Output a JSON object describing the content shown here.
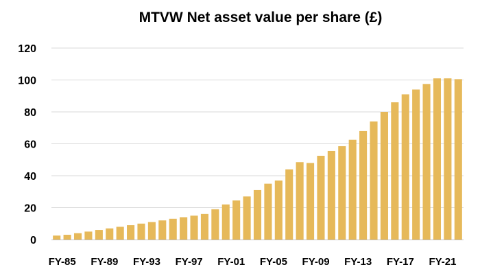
{
  "chart_data": {
    "type": "bar",
    "title": "MTVW Net asset value per share (£)",
    "xlabel": "",
    "ylabel": "",
    "ylim": [
      0,
      120
    ],
    "yticks": [
      0,
      20,
      40,
      60,
      80,
      100,
      120
    ],
    "grid": true,
    "bar_color": "#e6b95a",
    "categories": [
      "FY-85",
      "FY-86",
      "FY-87",
      "FY-88",
      "FY-89",
      "FY-90",
      "FY-91",
      "FY-92",
      "FY-93",
      "FY-94",
      "FY-95",
      "FY-96",
      "FY-97",
      "FY-98",
      "FY-99",
      "FY-00",
      "FY-01",
      "FY-02",
      "FY-03",
      "FY-04",
      "FY-05",
      "FY-06",
      "FY-07",
      "FY-08",
      "FY-09",
      "FY-10",
      "FY-11",
      "FY-12",
      "FY-13",
      "FY-14",
      "FY-15",
      "FY-16",
      "FY-17",
      "FY-18",
      "FY-19",
      "FY-20",
      "FY-21",
      "FY-22",
      "FY-23"
    ],
    "x_tick_labels": [
      "FY-85",
      "FY-89",
      "FY-93",
      "FY-97",
      "FY-01",
      "FY-05",
      "FY-09",
      "FY-13",
      "FY-17",
      "FY-21"
    ],
    "values": [
      2.5,
      3,
      4,
      5,
      6,
      7,
      8,
      9,
      10,
      11,
      12,
      13,
      14,
      15,
      16,
      19,
      22,
      24.5,
      27,
      31,
      35,
      37,
      44,
      48.5,
      48,
      52.5,
      55.5,
      58.5,
      62.5,
      68,
      74,
      80,
      86,
      91,
      94,
      97.5,
      101,
      101,
      100.5
    ]
  }
}
